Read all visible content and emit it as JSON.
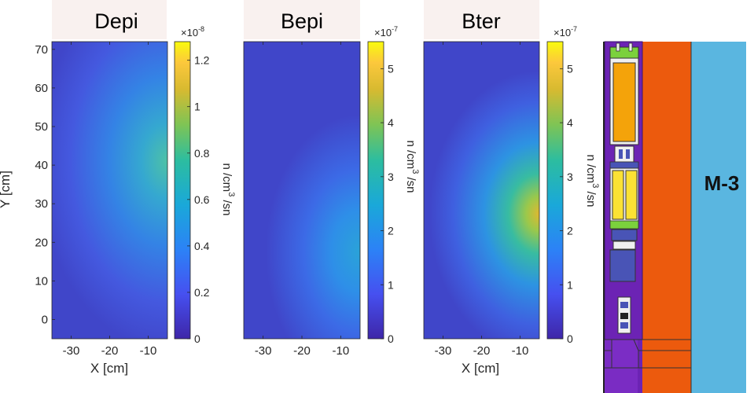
{
  "chart_data": [
    {
      "type": "heatmap",
      "title": "Depi",
      "xlabel": "X [cm]",
      "ylabel": "Y [cm]",
      "xlim": [
        -35,
        -5
      ],
      "ylim": [
        -5,
        72
      ],
      "x_ticks": [
        -30,
        -20,
        -10
      ],
      "y_ticks": [
        0,
        10,
        20,
        30,
        40,
        50,
        60,
        70
      ],
      "hotspot": {
        "x": -5,
        "y": 42,
        "value": 1.2
      },
      "colorbar": {
        "multiplier": "×10",
        "exponent": "-8",
        "ticks": [
          "0",
          "0.2",
          "0.4",
          "0.6",
          "0.8",
          "1",
          "1.2"
        ],
        "tick_values": [
          0,
          0.2,
          0.4,
          0.6,
          0.8,
          1.0,
          1.2
        ],
        "range": [
          0,
          1.28
        ],
        "label": {
          "base": "n /cm",
          "sup": "3",
          "tail": " /sn"
        }
      }
    },
    {
      "type": "heatmap",
      "title": "Bepi",
      "xlabel": "",
      "ylabel": "",
      "xlim": [
        -35,
        -5
      ],
      "ylim": [
        -5,
        72
      ],
      "x_ticks": [
        -30,
        -20,
        -10
      ],
      "hotspot": {
        "x": -5,
        "y": 18,
        "value": 2.3
      },
      "colorbar": {
        "multiplier": "×10",
        "exponent": "-7",
        "ticks": [
          "0",
          "1",
          "2",
          "3",
          "4",
          "5"
        ],
        "tick_values": [
          0,
          1,
          2,
          3,
          4,
          5
        ],
        "range": [
          0,
          5.5
        ],
        "label": {
          "base": "n /cm",
          "sup": "3",
          "tail": " /sn"
        }
      }
    },
    {
      "type": "heatmap",
      "title": "Bter",
      "xlabel": "X [cm]",
      "ylabel": "",
      "xlim": [
        -35,
        -5
      ],
      "ylim": [
        -5,
        72
      ],
      "x_ticks": [
        -30,
        -20,
        -10
      ],
      "hotspot": {
        "x": -5,
        "y": 27,
        "value": 3.2
      },
      "colorbar": {
        "multiplier": "×10",
        "exponent": "-7",
        "ticks": [
          "0",
          "1",
          "2",
          "3",
          "4",
          "5"
        ],
        "tick_values": [
          0,
          1,
          2,
          3,
          4,
          5
        ],
        "range": [
          0,
          5.5
        ],
        "label": {
          "base": "n /cm",
          "sup": "3",
          "tail": " /sn"
        }
      }
    }
  ],
  "geometry_panel": {
    "label": "M-3",
    "colors": {
      "purple": "#6c23b4",
      "orange": "#ec5a0d",
      "light_blue": "#5ab6e0",
      "yellow": "#fbe234",
      "amber": "#f4a30a",
      "green": "#7bd13c",
      "slate_blue": "#4954b6"
    }
  }
}
